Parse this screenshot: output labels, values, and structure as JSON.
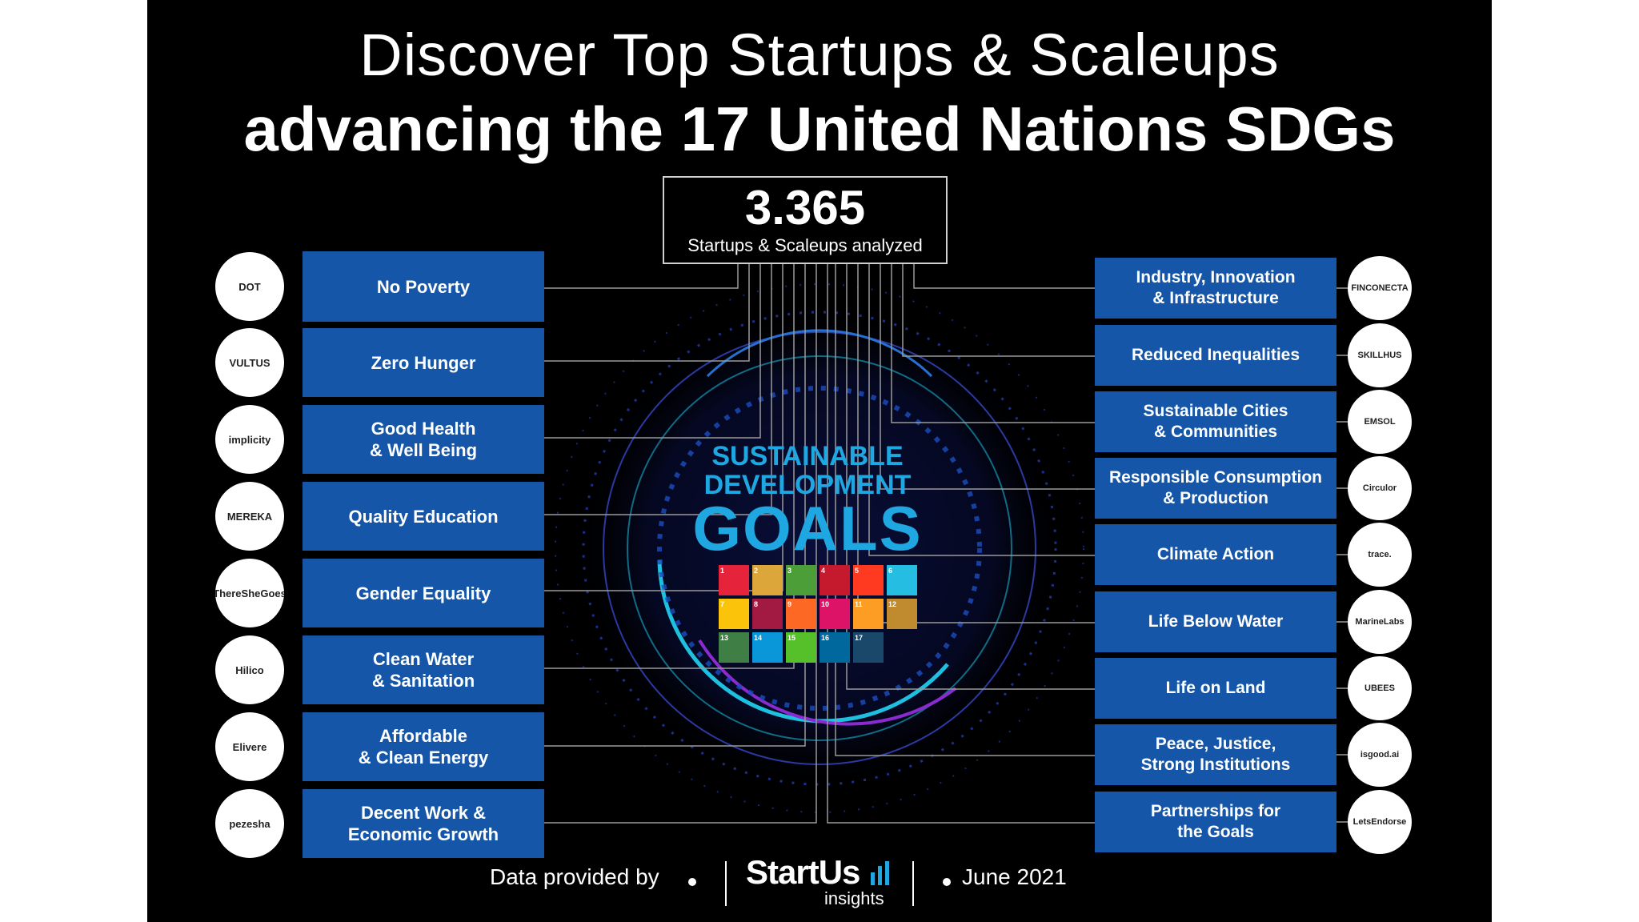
{
  "title": {
    "line1": "Discover Top Startups & Scaleups",
    "line2": "advancing the 17 United Nations SDGs"
  },
  "stat": {
    "number": "3.365",
    "label": "Startups & Scaleups analyzed"
  },
  "center": {
    "line1": "SUSTAINABLE",
    "line2": "DEVELOPMENT",
    "goals": "GOALS"
  },
  "left_items": [
    {
      "label": "No Poverty",
      "logo": "DOT"
    },
    {
      "label": "Zero Hunger",
      "logo": "VULTUS"
    },
    {
      "label": "Good Health\n& Well Being",
      "logo": "implicity"
    },
    {
      "label": "Quality Education",
      "logo": "MEREKA"
    },
    {
      "label": "Gender Equality",
      "logo": "ThereSheGoes"
    },
    {
      "label": "Clean Water\n& Sanitation",
      "logo": "Hilico"
    },
    {
      "label": "Affordable\n& Clean Energy",
      "logo": "Elivere"
    },
    {
      "label": "Decent Work &\nEconomic Growth",
      "logo": "pezesha"
    }
  ],
  "right_items": [
    {
      "label": "Industry, Innovation\n& Infrastructure",
      "logo": "FINCONECTA"
    },
    {
      "label": "Reduced Inequalities",
      "logo": "SKILLHUS"
    },
    {
      "label": "Sustainable Cities\n& Communities",
      "logo": "EMSOL"
    },
    {
      "label": "Responsible Consumption\n& Production",
      "logo": "Circulor"
    },
    {
      "label": "Climate Action",
      "logo": "trace."
    },
    {
      "label": "Life Below Water",
      "logo": "MarineLabs"
    },
    {
      "label": "Life on Land",
      "logo": "UBEES"
    },
    {
      "label": "Peace, Justice,\nStrong Institutions",
      "logo": "isgood.ai"
    },
    {
      "label": "Partnerships for\nthe Goals",
      "logo": "LetsEndorse"
    }
  ],
  "tiles": [
    {
      "n": "1",
      "color": "#e5243b"
    },
    {
      "n": "2",
      "color": "#dda63a"
    },
    {
      "n": "3",
      "color": "#4c9f38"
    },
    {
      "n": "4",
      "color": "#c5192d"
    },
    {
      "n": "5",
      "color": "#ff3a21"
    },
    {
      "n": "6",
      "color": "#26bde2"
    },
    {
      "n": "7",
      "color": "#fcc30b"
    },
    {
      "n": "8",
      "color": "#a21942"
    },
    {
      "n": "9",
      "color": "#fd6925"
    },
    {
      "n": "10",
      "color": "#dd1367"
    },
    {
      "n": "11",
      "color": "#fd9d24"
    },
    {
      "n": "12",
      "color": "#bf8b2e"
    },
    {
      "n": "13",
      "color": "#3f7e44"
    },
    {
      "n": "14",
      "color": "#0a97d9"
    },
    {
      "n": "15",
      "color": "#56c02b"
    },
    {
      "n": "16",
      "color": "#00689d"
    },
    {
      "n": "17",
      "color": "#19486a"
    }
  ],
  "footer": {
    "data_by": "Data provided by",
    "brand": "StartUs",
    "brand_sub": "insights",
    "date": "June 2021"
  },
  "colors": {
    "box": "#1556a8",
    "accent": "#1ea7e0"
  }
}
